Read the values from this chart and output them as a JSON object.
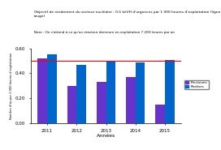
{
  "years": [
    "2011",
    "2012",
    "2013",
    "2014",
    "2015"
  ],
  "series1_label": "Previsions",
  "series2_label": "Realises",
  "series1_values": [
    0.52,
    0.3,
    0.33,
    0.37,
    0.15
  ],
  "series2_values": [
    0.55,
    0.47,
    0.5,
    0.49,
    0.51
  ],
  "series1_color": "#6633CC",
  "series2_color": "#0066CC",
  "ref_line_value": 0.5,
  "ref_line_color": "#FF0000",
  "ylim": [
    0.0,
    0.6
  ],
  "yticks": [
    0.0,
    0.2,
    0.4,
    0.6
  ],
  "xlabel": "Années",
  "ylabel": "Nombre d'ép par 1 000 heures d'exploitation",
  "title": "Objectif de rendement du secteur nucléaire : 0,5 kéVH d'urgences par 1 000 heures d'exploitation (ligne rouge)",
  "note": "Note : On s'attend à ce qu'un réacteur demeure en exploitation 7 200 heures par an",
  "background_color": "#ffffff",
  "bar_width": 0.32,
  "fig_width": 2.72,
  "fig_height": 1.85,
  "dpi": 100
}
